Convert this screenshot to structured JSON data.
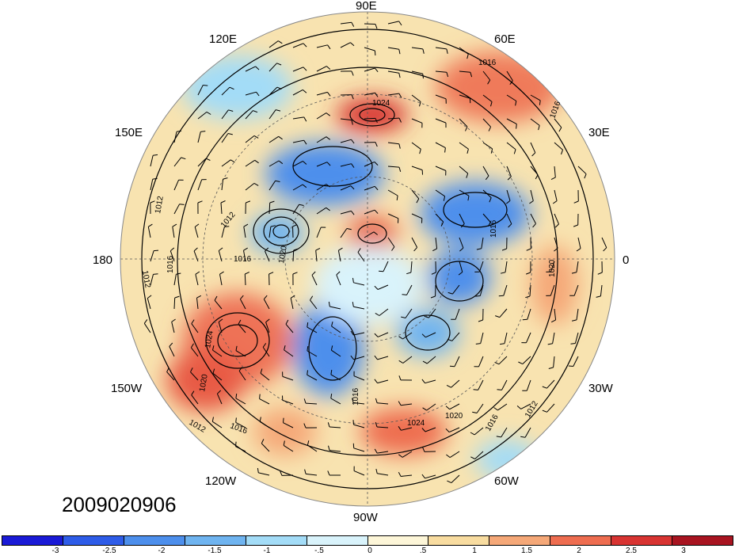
{
  "longitude_labels": {
    "e90": "90E",
    "e60": "60E",
    "e120": "120E",
    "e30": "30E",
    "e150": "150E",
    "lon180": "180",
    "lon0": "0",
    "w150": "150W",
    "w30": "30W",
    "w120": "120W",
    "w60": "60W",
    "w90": "90W"
  },
  "timestamp": "2009020906",
  "contour_labels": [
    "1016",
    "1016",
    "1024",
    "1012",
    "1012",
    "1016",
    "1012",
    "1016",
    "1020",
    "1024",
    "1020",
    "1012",
    "1016",
    "1024",
    "1020",
    "1016",
    "1012",
    "1016",
    "1020",
    "1016"
  ],
  "colorbar": {
    "colors": [
      "#1a1ad6",
      "#2e5ce8",
      "#4d8fec",
      "#6fb4f0",
      "#a3dcf7",
      "#d9f3fb",
      "#fdf6d8",
      "#f8dca0",
      "#f5a878",
      "#ee6d50",
      "#d83432",
      "#a81420"
    ],
    "labels": [
      "-3",
      "-2.5",
      "-2",
      "-1.5",
      "-1",
      "-.5",
      "0",
      ".5",
      "1",
      "1.5",
      "2",
      "2.5",
      "3"
    ]
  }
}
